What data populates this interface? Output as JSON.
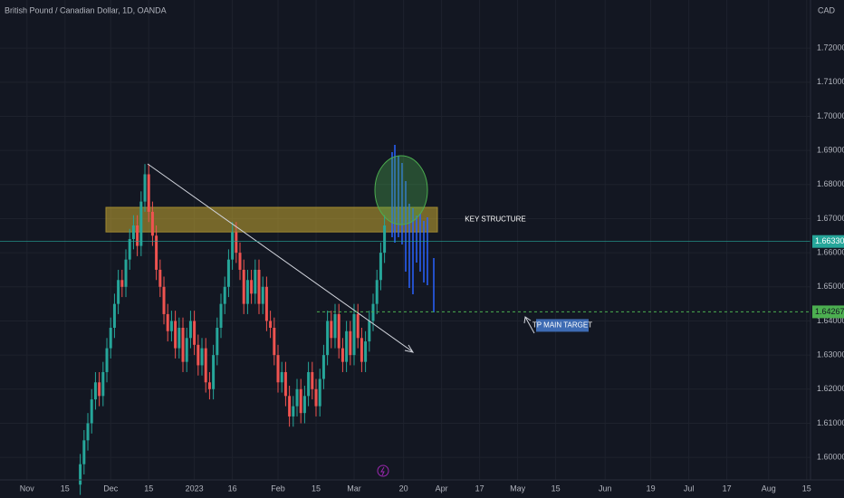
{
  "chart_data": {
    "type": "candlestick",
    "title": "British Pound / Canadian Dollar, 1D, OANDA",
    "currency": "CAD",
    "up_color": "#26a69a",
    "down_color": "#ef5350",
    "xlim": [
      -7.1,
      206
    ],
    "xticks": [
      {
        "value": 0,
        "label": "Nov"
      },
      {
        "value": 10,
        "label": "15"
      },
      {
        "value": 22,
        "label": "Dec"
      },
      {
        "value": 32,
        "label": "15"
      },
      {
        "value": 44,
        "label": "2023"
      },
      {
        "value": 54,
        "label": "16"
      },
      {
        "value": 66,
        "label": "Feb"
      },
      {
        "value": 76,
        "label": "15"
      },
      {
        "value": 86,
        "label": "Mar"
      },
      {
        "value": 99,
        "label": "20"
      },
      {
        "value": 109,
        "label": "Apr"
      },
      {
        "value": 119,
        "label": "17"
      },
      {
        "value": 129,
        "label": "May"
      },
      {
        "value": 139,
        "label": "15"
      },
      {
        "value": 152,
        "label": "Jun"
      },
      {
        "value": 164,
        "label": "19"
      },
      {
        "value": 174,
        "label": "Jul"
      },
      {
        "value": 184,
        "label": "17"
      },
      {
        "value": 195,
        "label": "Aug"
      },
      {
        "value": 205,
        "label": "15"
      }
    ],
    "ylim": [
      1.5934,
      1.7341
    ],
    "yticks": [
      {
        "value": 1.72,
        "label": "1.72000"
      },
      {
        "value": 1.71,
        "label": "1.71000"
      },
      {
        "value": 1.7,
        "label": "1.70000"
      },
      {
        "value": 1.69,
        "label": "1.69000"
      },
      {
        "value": 1.68,
        "label": "1.68000"
      },
      {
        "value": 1.67,
        "label": "1.67000"
      },
      {
        "value": 1.66,
        "label": "1.66000"
      },
      {
        "value": 1.65,
        "label": "1.65000"
      },
      {
        "value": 1.64,
        "label": "1.64000"
      },
      {
        "value": 1.63,
        "label": "1.63000"
      },
      {
        "value": 1.62,
        "label": "1.62000"
      },
      {
        "value": 1.61,
        "label": "1.61000"
      },
      {
        "value": 1.6,
        "label": "1.60000"
      }
    ],
    "x": [
      14,
      15,
      16,
      17,
      18,
      19,
      20,
      21,
      22,
      23,
      24,
      25,
      26,
      27,
      28,
      29,
      30,
      31,
      32,
      33,
      34,
      35,
      36,
      37,
      38,
      39,
      40,
      41,
      42,
      43,
      44,
      45,
      46,
      47,
      48,
      49,
      50,
      51,
      52,
      53,
      54,
      55,
      56,
      57,
      58,
      59,
      60,
      61,
      62,
      63,
      64,
      65,
      66,
      67,
      68,
      69,
      70,
      71,
      72,
      73,
      74,
      75,
      76,
      77,
      78,
      79,
      80,
      81,
      82,
      83,
      84,
      85,
      86,
      87,
      88,
      89,
      90,
      91,
      92,
      93,
      94
    ],
    "open": [
      1.592,
      1.598,
      1.605,
      1.61,
      1.617,
      1.622,
      1.618,
      1.625,
      1.632,
      1.638,
      1.645,
      1.652,
      1.65,
      1.658,
      1.664,
      1.668,
      1.662,
      1.675,
      1.683,
      1.672,
      1.665,
      1.655,
      1.65,
      1.642,
      1.637,
      1.64,
      1.632,
      1.638,
      1.628,
      1.635,
      1.64,
      1.633,
      1.627,
      1.632,
      1.622,
      1.62,
      1.63,
      1.638,
      1.645,
      1.65,
      1.658,
      1.666,
      1.66,
      1.655,
      1.645,
      1.652,
      1.648,
      1.655,
      1.645,
      1.65,
      1.64,
      1.638,
      1.63,
      1.622,
      1.625,
      1.618,
      1.612,
      1.615,
      1.62,
      1.613,
      1.618,
      1.625,
      1.62,
      1.615,
      1.623,
      1.63,
      1.64,
      1.635,
      1.642,
      1.632,
      1.628,
      1.637,
      1.63,
      1.642,
      1.635,
      1.628,
      1.634,
      1.64,
      1.645,
      1.652,
      1.66
    ],
    "high": [
      1.601,
      1.608,
      1.613,
      1.62,
      1.625,
      1.625,
      1.628,
      1.635,
      1.641,
      1.648,
      1.655,
      1.655,
      1.661,
      1.667,
      1.671,
      1.671,
      1.678,
      1.686,
      1.686,
      1.675,
      1.668,
      1.658,
      1.653,
      1.645,
      1.643,
      1.643,
      1.641,
      1.641,
      1.638,
      1.643,
      1.643,
      1.636,
      1.635,
      1.635,
      1.625,
      1.633,
      1.641,
      1.648,
      1.653,
      1.661,
      1.669,
      1.669,
      1.663,
      1.658,
      1.655,
      1.655,
      1.658,
      1.658,
      1.653,
      1.653,
      1.643,
      1.641,
      1.633,
      1.628,
      1.628,
      1.621,
      1.618,
      1.623,
      1.623,
      1.621,
      1.628,
      1.628,
      1.623,
      1.626,
      1.633,
      1.643,
      1.643,
      1.645,
      1.645,
      1.635,
      1.64,
      1.64,
      1.645,
      1.645,
      1.638,
      1.637,
      1.643,
      1.648,
      1.655,
      1.663,
      1.671
    ],
    "low": [
      1.589,
      1.595,
      1.602,
      1.607,
      1.614,
      1.615,
      1.615,
      1.622,
      1.629,
      1.635,
      1.642,
      1.647,
      1.647,
      1.655,
      1.661,
      1.659,
      1.659,
      1.672,
      1.669,
      1.662,
      1.652,
      1.647,
      1.639,
      1.634,
      1.634,
      1.629,
      1.629,
      1.625,
      1.625,
      1.632,
      1.63,
      1.624,
      1.624,
      1.619,
      1.617,
      1.617,
      1.627,
      1.635,
      1.642,
      1.647,
      1.655,
      1.657,
      1.652,
      1.642,
      1.642,
      1.645,
      1.645,
      1.642,
      1.642,
      1.637,
      1.635,
      1.627,
      1.619,
      1.619,
      1.615,
      1.609,
      1.609,
      1.612,
      1.61,
      1.61,
      1.615,
      1.617,
      1.612,
      1.612,
      1.62,
      1.627,
      1.632,
      1.632,
      1.629,
      1.625,
      1.625,
      1.627,
      1.627,
      1.632,
      1.625,
      1.625,
      1.631,
      1.637,
      1.642,
      1.649,
      1.657
    ],
    "close": [
      1.598,
      1.605,
      1.61,
      1.617,
      1.622,
      1.618,
      1.625,
      1.632,
      1.638,
      1.645,
      1.652,
      1.65,
      1.658,
      1.664,
      1.668,
      1.662,
      1.675,
      1.683,
      1.672,
      1.665,
      1.655,
      1.65,
      1.642,
      1.637,
      1.64,
      1.632,
      1.638,
      1.628,
      1.635,
      1.64,
      1.633,
      1.627,
      1.632,
      1.622,
      1.62,
      1.63,
      1.638,
      1.645,
      1.65,
      1.658,
      1.666,
      1.66,
      1.655,
      1.645,
      1.652,
      1.648,
      1.655,
      1.645,
      1.65,
      1.64,
      1.638,
      1.63,
      1.622,
      1.625,
      1.618,
      1.612,
      1.615,
      1.62,
      1.613,
      1.618,
      1.625,
      1.62,
      1.615,
      1.623,
      1.63,
      1.64,
      1.635,
      1.642,
      1.632,
      1.628,
      1.637,
      1.63,
      1.642,
      1.635,
      1.628,
      1.634,
      1.64,
      1.645,
      1.652,
      1.66,
      1.668
    ],
    "current_price": {
      "value": 1.6633,
      "label": "1.66330"
    },
    "target_price": {
      "value": 1.64267,
      "label": "1.64267"
    },
    "key_structure": {
      "label": "KEY STRUCTURE",
      "range": [
        1.6661,
        1.6733
      ]
    },
    "target_label": "TP MAIN TARGET"
  }
}
